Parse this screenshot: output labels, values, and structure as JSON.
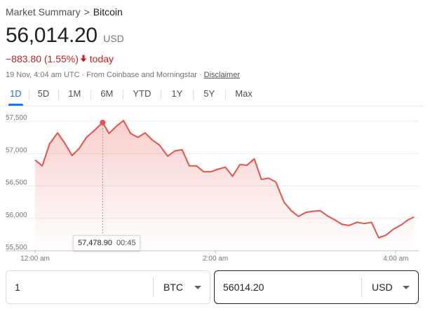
{
  "breadcrumb": {
    "parent": "Market Summary",
    "separator": ">",
    "current": "Bitcoin"
  },
  "quote": {
    "price": "56,014.20",
    "currency": "USD",
    "change": "−883.80 (1.55%)",
    "change_suffix": "today",
    "change_color": "#c5221f",
    "timestamp": "19 Nov, 4:04 am UTC",
    "source": "From Coinbase and Morningstar",
    "disclaimer": "Disclaimer"
  },
  "tabs": [
    {
      "label": "1D",
      "active": true
    },
    {
      "label": "5D"
    },
    {
      "label": "1M"
    },
    {
      "label": "6M"
    },
    {
      "label": "YTD"
    },
    {
      "label": "1Y"
    },
    {
      "label": "5Y"
    },
    {
      "label": "Max"
    }
  ],
  "tooltip": {
    "value": "57,478.90",
    "time": "00:45"
  },
  "converter": {
    "from_amount": "1",
    "from_currency": "BTC",
    "to_amount": "56014.20",
    "to_currency": "USD"
  },
  "chart_data": {
    "type": "area",
    "y_ticks": [
      "57,500",
      "57,000",
      "56,500",
      "56,000",
      "55,500"
    ],
    "y_tick_values": [
      57500,
      57000,
      56500,
      56000,
      55500
    ],
    "ylim": [
      55500,
      57500
    ],
    "xlim": [
      0,
      4.2
    ],
    "x_ticks": [
      {
        "label": "12:00 am",
        "x": 0
      },
      {
        "label": "2:00 am",
        "x": 2
      },
      {
        "label": "4:00 am",
        "x": 4
      }
    ],
    "line_color": "#e5534b",
    "grid": true,
    "highlight": {
      "x": 0.75,
      "y": 57479
    },
    "x": [
      0,
      0.08,
      0.16,
      0.25,
      0.33,
      0.41,
      0.49,
      0.57,
      0.66,
      0.75,
      0.82,
      0.9,
      0.98,
      1.06,
      1.14,
      1.22,
      1.3,
      1.38,
      1.47,
      1.55,
      1.63,
      1.71,
      1.79,
      1.87,
      1.95,
      2.03,
      2.11,
      2.19,
      2.27,
      2.35,
      2.43,
      2.51,
      2.59,
      2.67,
      2.76,
      2.84,
      2.92,
      3.0,
      3.08,
      3.16,
      3.24,
      3.32,
      3.4,
      3.48,
      3.57,
      3.65,
      3.73,
      3.81,
      3.89,
      3.97,
      4.06,
      4.14,
      4.2
    ],
    "y": [
      56900,
      56810,
      57150,
      57320,
      57160,
      56970,
      57080,
      57250,
      57360,
      57479,
      57310,
      57420,
      57510,
      57310,
      57250,
      57320,
      57210,
      57130,
      56960,
      57040,
      57060,
      56810,
      56810,
      56720,
      56720,
      56760,
      56790,
      56650,
      56830,
      56820,
      56920,
      56600,
      56620,
      56560,
      56250,
      56120,
      56030,
      56090,
      56110,
      56120,
      56040,
      55980,
      55910,
      55890,
      55940,
      55920,
      55940,
      55700,
      55740,
      55830,
      55900,
      55980,
      56020
    ]
  }
}
